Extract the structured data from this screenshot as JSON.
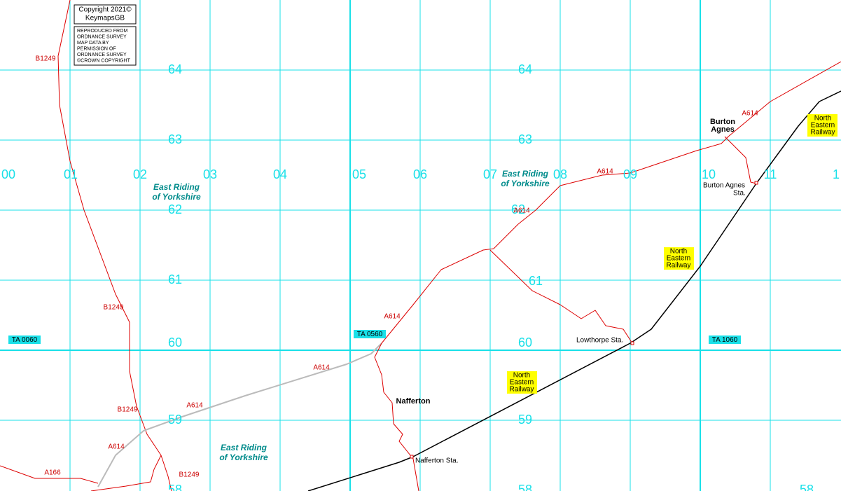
{
  "copyright": {
    "lines": [
      "Copyright 2021©",
      "KeymapsGB"
    ]
  },
  "notice": {
    "lines": [
      "REPRODUCED FROM",
      "ORDNANCE SURVEY",
      "MAP DATA BY",
      "PERMISSION OF",
      "ORDNANCE SURVEY",
      "©CROWN COPYRIGHT"
    ]
  },
  "grid": {
    "eastings": [
      "00",
      "01",
      "02",
      "03",
      "04",
      "05",
      "06",
      "07",
      "08",
      "09",
      "10",
      "11",
      "1"
    ],
    "northings_left": [
      "64",
      "63",
      "62",
      "61",
      "60",
      "59",
      "58"
    ],
    "northings_mid": [
      "64",
      "63",
      "62",
      "61",
      "60",
      "59",
      "58"
    ],
    "northings_right": [
      "58"
    ]
  },
  "grid_refs": [
    "TA 0060",
    "TA 0560",
    "TA 1060"
  ],
  "road_labels": [
    "B1249",
    "B1249",
    "B1249",
    "B1249",
    "A614",
    "A614",
    "A614",
    "A614",
    "A614",
    "A614",
    "A614",
    "A166"
  ],
  "places": [
    {
      "lines": [
        "Nafferton"
      ]
    },
    {
      "lines": [
        "Burton",
        "Agnes"
      ]
    }
  ],
  "stations": [
    {
      "lines": [
        "Nafferton Sta."
      ]
    },
    {
      "lines": [
        "Lowthorpe Sta."
      ]
    },
    {
      "lines": [
        "Burton Agnes",
        "Sta."
      ]
    }
  ],
  "districts": [
    {
      "lines": [
        "East Riding",
        "of Yorkshire"
      ]
    },
    {
      "lines": [
        "East Riding",
        "of Yorkshire"
      ]
    },
    {
      "lines": [
        "East Riding",
        "of Yorkshire"
      ]
    }
  ],
  "railway_labels": [
    {
      "lines": [
        "North",
        "Eastern",
        "Railway"
      ]
    },
    {
      "lines": [
        "North",
        "Eastern",
        "Railway"
      ]
    },
    {
      "lines": [
        "North",
        "Eastern",
        "Railway"
      ]
    }
  ]
}
